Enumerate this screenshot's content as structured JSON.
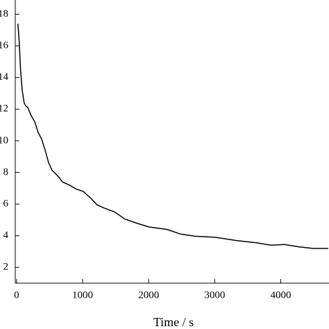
{
  "chart_data": {
    "type": "line",
    "x_label": "Time / s",
    "x": [
      20,
      40,
      60,
      85,
      115,
      140,
      170,
      220,
      275,
      325,
      380,
      430,
      485,
      535,
      640,
      695,
      800,
      905,
      1010,
      1115,
      1220,
      1325,
      1485,
      1640,
      1850,
      2010,
      2275,
      2485,
      2695,
      3010,
      3325,
      3640,
      3850,
      4060,
      4275,
      4485,
      4720
    ],
    "series": [
      {
        "color": "#000000",
        "values": [
          17.4,
          16.25,
          14.5,
          13.2,
          12.4,
          12.2,
          12.1,
          11.6,
          11.2,
          10.55,
          10.1,
          9.45,
          8.6,
          8.15,
          7.7,
          7.4,
          7.2,
          6.95,
          6.8,
          6.4,
          5.95,
          5.75,
          5.5,
          5.05,
          4.75,
          4.55,
          4.4,
          4.1,
          3.97,
          3.9,
          3.7,
          3.55,
          3.4,
          3.45,
          3.3,
          3.2,
          3.2
        ]
      }
    ],
    "xlim": [
      -20,
      4730
    ],
    "xticks": [
      0,
      1000,
      2000,
      3000,
      4000
    ],
    "ylim": [
      1,
      18.9
    ],
    "yticks": [
      2,
      4,
      6,
      8,
      10,
      12,
      14,
      16,
      18
    ]
  }
}
